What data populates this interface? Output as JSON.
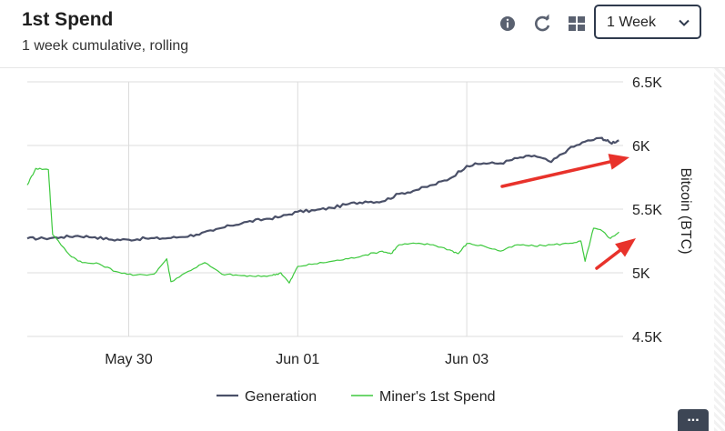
{
  "header": {
    "title": "1st Spend",
    "subtitle": "1 week cumulative, rolling",
    "icons": [
      "info-icon",
      "refresh-icon",
      "grid-icon"
    ],
    "range_select": {
      "value": "1 Week"
    }
  },
  "more_button": {
    "label": "..."
  },
  "colors": {
    "generation": "#4a5068",
    "miner": "#3ec93e",
    "arrow": "#e8322b"
  },
  "chart_data": {
    "type": "line",
    "title": "",
    "ylabel": "Bitcoin (BTC)",
    "ylim": [
      4500,
      6500
    ],
    "y_ticks": [
      "6.5K",
      "6K",
      "5.5K",
      "5K",
      "4.5K"
    ],
    "x_ticks": [
      "May 30",
      "Jun 01",
      "Jun 03"
    ],
    "x_range_days": [
      -1.2,
      5.85
    ],
    "x_tick_positions_days": [
      0,
      2,
      4
    ],
    "grid": true,
    "legend": "bottom",
    "annotations": [
      "red-arrow-to-generation-line",
      "red-arrow-to-miner-line"
    ],
    "series": [
      {
        "name": "Generation",
        "points": [
          [
            -1.2,
            5270
          ],
          [
            -1.0,
            5270
          ],
          [
            -0.8,
            5280
          ],
          [
            -0.6,
            5290
          ],
          [
            -0.4,
            5280
          ],
          [
            -0.2,
            5260
          ],
          [
            0,
            5260
          ],
          [
            0.2,
            5270
          ],
          [
            0.4,
            5270
          ],
          [
            0.6,
            5280
          ],
          [
            0.8,
            5300
          ],
          [
            1.0,
            5330
          ],
          [
            1.2,
            5370
          ],
          [
            1.4,
            5400
          ],
          [
            1.6,
            5420
          ],
          [
            1.8,
            5440
          ],
          [
            2.0,
            5480
          ],
          [
            2.2,
            5490
          ],
          [
            2.4,
            5510
          ],
          [
            2.6,
            5540
          ],
          [
            2.8,
            5560
          ],
          [
            3.0,
            5560
          ],
          [
            3.2,
            5620
          ],
          [
            3.4,
            5650
          ],
          [
            3.6,
            5690
          ],
          [
            3.8,
            5740
          ],
          [
            4.0,
            5840
          ],
          [
            4.2,
            5860
          ],
          [
            4.4,
            5860
          ],
          [
            4.6,
            5900
          ],
          [
            4.8,
            5920
          ],
          [
            5.0,
            5870
          ],
          [
            5.2,
            5970
          ],
          [
            5.4,
            6030
          ],
          [
            5.6,
            6060
          ],
          [
            5.7,
            6020
          ],
          [
            5.8,
            6040
          ]
        ]
      },
      {
        "name": "Miner's 1st Spend",
        "points": [
          [
            -1.2,
            5690
          ],
          [
            -1.1,
            5820
          ],
          [
            -0.95,
            5810
          ],
          [
            -0.9,
            5300
          ],
          [
            -0.7,
            5140
          ],
          [
            -0.55,
            5080
          ],
          [
            -0.35,
            5070
          ],
          [
            -0.15,
            5010
          ],
          [
            0.05,
            4980
          ],
          [
            0.3,
            4990
          ],
          [
            0.45,
            5110
          ],
          [
            0.5,
            4930
          ],
          [
            0.7,
            5010
          ],
          [
            0.9,
            5080
          ],
          [
            1.1,
            4990
          ],
          [
            1.3,
            4980
          ],
          [
            1.5,
            4970
          ],
          [
            1.7,
            4980
          ],
          [
            1.8,
            5000
          ],
          [
            1.9,
            4920
          ],
          [
            2.0,
            5050
          ],
          [
            2.2,
            5070
          ],
          [
            2.4,
            5090
          ],
          [
            2.6,
            5110
          ],
          [
            2.8,
            5140
          ],
          [
            3.0,
            5170
          ],
          [
            3.1,
            5150
          ],
          [
            3.2,
            5220
          ],
          [
            3.4,
            5230
          ],
          [
            3.6,
            5220
          ],
          [
            3.8,
            5180
          ],
          [
            3.9,
            5150
          ],
          [
            4.0,
            5230
          ],
          [
            4.2,
            5210
          ],
          [
            4.4,
            5170
          ],
          [
            4.6,
            5220
          ],
          [
            4.8,
            5210
          ],
          [
            5.0,
            5220
          ],
          [
            5.2,
            5230
          ],
          [
            5.35,
            5250
          ],
          [
            5.4,
            5090
          ],
          [
            5.5,
            5350
          ],
          [
            5.6,
            5330
          ],
          [
            5.7,
            5270
          ],
          [
            5.8,
            5320
          ]
        ]
      }
    ]
  }
}
